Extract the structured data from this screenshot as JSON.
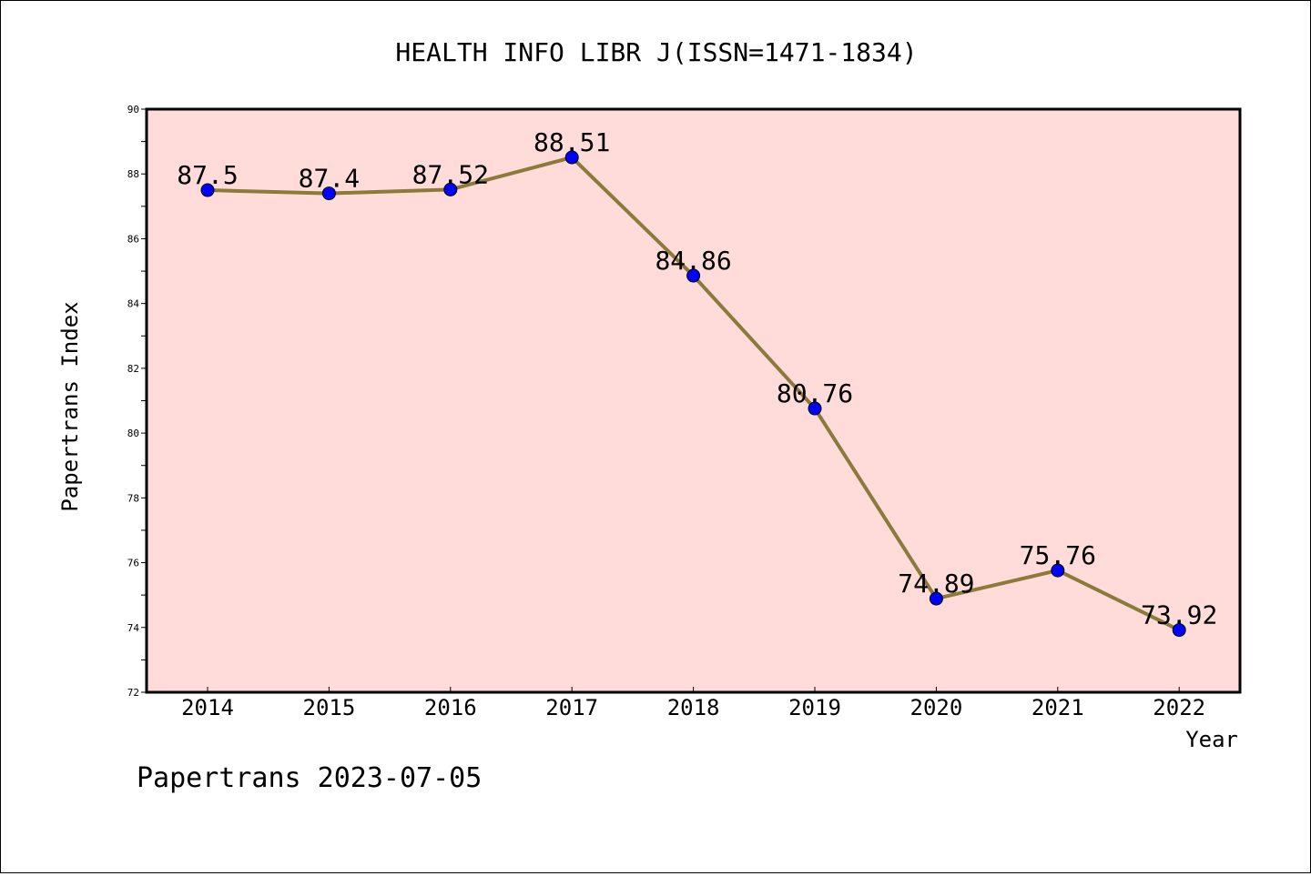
{
  "chart_data": {
    "type": "line",
    "title": "HEALTH INFO LIBR J(ISSN=1471-1834)",
    "xlabel": "Year",
    "ylabel": "Papertrans Index",
    "categories": [
      "2014",
      "2015",
      "2016",
      "2017",
      "2018",
      "2019",
      "2020",
      "2021",
      "2022"
    ],
    "series": [
      {
        "values": [
          87.5,
          87.4,
          87.52,
          88.51,
          84.86,
          80.76,
          74.89,
          75.76,
          73.92
        ],
        "data_labels": [
          "87.5",
          "87.4",
          "87.52",
          "88.51",
          "84.86",
          "80.76",
          "74.89",
          "75.76",
          "73.92"
        ]
      }
    ],
    "ylim": [
      72,
      90
    ],
    "yticks": [
      72,
      74,
      76,
      78,
      80,
      82,
      84,
      86,
      88,
      90
    ],
    "ytick_labels": [
      "72",
      "74",
      "76",
      "78",
      "80",
      "82",
      "84",
      "86",
      "88",
      "90"
    ],
    "grid": false,
    "colors": {
      "plot_background": "#FFDCDA",
      "line": "#8B7A3A",
      "marker": "#0000FF",
      "axis": "#000000"
    }
  },
  "footer": {
    "watermark": "Papertrans 2023-07-05"
  }
}
